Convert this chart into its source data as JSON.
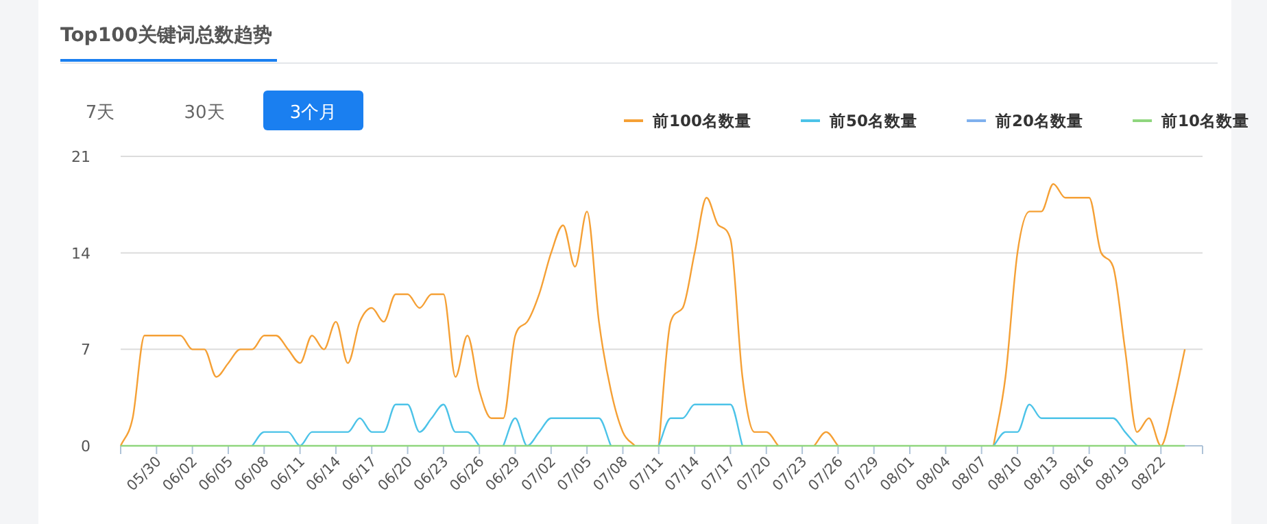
{
  "chart_data": {
    "type": "line",
    "title": "Top100关键词总数趋势",
    "annotations": [
      "7天",
      "30天",
      "3个月"
    ],
    "categories": [
      null,
      null,
      null,
      "05/30",
      null,
      null,
      "06/02",
      null,
      null,
      "06/05",
      null,
      null,
      "06/08",
      null,
      null,
      "06/11",
      null,
      null,
      "06/14",
      null,
      null,
      "06/17",
      null,
      null,
      "06/20",
      null,
      null,
      "06/23",
      null,
      null,
      "06/26",
      null,
      null,
      "06/29",
      null,
      null,
      "07/02",
      null,
      null,
      "07/05",
      null,
      null,
      "07/08",
      null,
      null,
      "07/11",
      null,
      null,
      "07/14",
      null,
      null,
      "07/17",
      null,
      null,
      "07/20",
      null,
      null,
      "07/23",
      null,
      null,
      "07/26",
      null,
      null,
      "07/29",
      null,
      null,
      "08/01",
      null,
      null,
      "08/04",
      null,
      null,
      "08/07",
      null,
      null,
      "08/10",
      null,
      null,
      "08/13",
      null,
      null,
      "08/16",
      null,
      null,
      "08/19",
      null,
      null,
      "08/22",
      null,
      null
    ],
    "ylim": [
      0,
      21
    ],
    "yticks": [
      0,
      7,
      14,
      21
    ],
    "grid": "y",
    "legend": "top right",
    "marker": "none",
    "line_style": "solid",
    "series": [
      {
        "name": "前100名数量",
        "color": "#f5a035",
        "values": [
          0,
          2,
          8,
          8,
          8,
          8,
          7,
          7,
          5,
          6,
          7,
          7,
          8,
          8,
          7,
          6,
          8,
          7,
          9,
          6,
          9,
          10,
          9,
          11,
          11,
          10,
          11,
          11,
          5,
          8,
          4,
          2,
          2,
          8,
          9,
          11,
          14,
          16,
          13,
          17,
          9,
          4,
          1,
          0,
          null,
          0,
          9,
          10,
          14,
          18,
          16,
          15,
          5,
          1,
          1,
          0,
          null,
          null,
          0,
          1,
          0,
          null,
          null,
          null,
          null,
          null,
          null,
          null,
          null,
          null,
          null,
          null,
          null,
          0,
          5,
          14,
          17,
          17,
          19,
          18,
          18,
          18,
          14,
          13,
          7,
          1,
          2,
          0,
          3,
          7
        ]
      },
      {
        "name": "前50名数量",
        "color": "#4cc3e8",
        "values": [
          null,
          null,
          null,
          null,
          null,
          null,
          null,
          null,
          null,
          null,
          null,
          0,
          1,
          1,
          1,
          0,
          1,
          1,
          1,
          1,
          2,
          1,
          1,
          3,
          3,
          1,
          2,
          3,
          1,
          1,
          0,
          null,
          0,
          2,
          0,
          1,
          2,
          2,
          2,
          2,
          2,
          0,
          null,
          null,
          null,
          0,
          2,
          2,
          3,
          3,
          3,
          3,
          0,
          null,
          null,
          null,
          null,
          null,
          null,
          null,
          null,
          null,
          null,
          null,
          null,
          null,
          null,
          null,
          null,
          null,
          null,
          null,
          null,
          0,
          1,
          1,
          3,
          2,
          2,
          2,
          2,
          2,
          2,
          2,
          1,
          0,
          null,
          null,
          null,
          null
        ]
      },
      {
        "name": "前20名数量",
        "color": "#7fb0ee",
        "values": [
          null,
          null,
          null,
          null,
          null,
          null,
          null,
          null,
          null,
          null,
          null,
          null,
          null,
          null,
          null,
          null,
          null,
          null,
          null,
          null,
          null,
          null,
          null,
          null,
          null,
          null,
          null,
          null,
          null,
          null,
          null,
          null,
          null,
          null,
          null,
          null,
          null,
          null,
          null,
          null,
          null,
          null,
          null,
          null,
          null,
          null,
          null,
          null,
          null,
          null,
          null,
          null,
          null,
          null,
          null,
          null,
          null,
          null,
          null,
          null,
          null,
          null,
          null,
          null,
          null,
          null,
          null,
          null,
          null,
          null,
          null,
          null,
          null,
          null,
          null,
          null,
          null,
          null,
          null,
          null,
          null,
          null,
          null,
          null,
          null,
          null,
          null,
          null,
          null,
          null
        ]
      },
      {
        "name": "前10名数量",
        "color": "#8fd67e",
        "values": [
          0,
          0,
          0,
          0,
          0,
          0,
          0,
          0,
          0,
          0,
          0,
          0,
          0,
          0,
          0,
          0,
          0,
          0,
          0,
          0,
          0,
          0,
          0,
          0,
          0,
          0,
          0,
          0,
          0,
          0,
          0,
          0,
          0,
          0,
          0,
          0,
          0,
          0,
          0,
          0,
          0,
          0,
          0,
          0,
          0,
          0,
          0,
          0,
          0,
          0,
          0,
          0,
          0,
          0,
          0,
          0,
          0,
          0,
          0,
          0,
          0,
          0,
          0,
          0,
          0,
          0,
          0,
          0,
          0,
          0,
          0,
          0,
          0,
          0,
          0,
          0,
          0,
          0,
          0,
          0,
          0,
          0,
          0,
          0,
          0,
          0,
          0,
          0,
          0,
          0
        ]
      }
    ]
  }
}
